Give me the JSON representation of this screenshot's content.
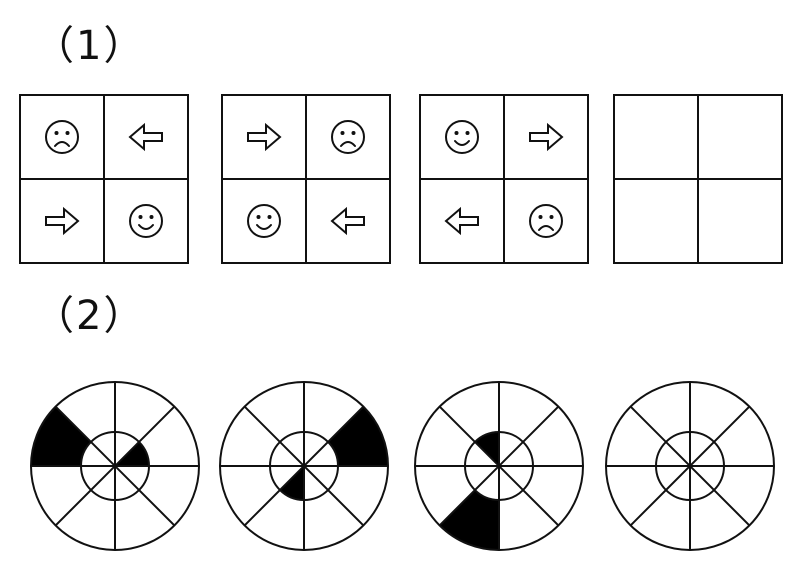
{
  "problems": [
    {
      "label": "（1）",
      "panels": [
        {
          "cells": [
            "sad-face",
            "left-arrow",
            "right-arrow",
            "happy-face"
          ]
        },
        {
          "cells": [
            "right-arrow",
            "sad-face",
            "happy-face",
            "left-arrow"
          ]
        },
        {
          "cells": [
            "happy-face",
            "right-arrow",
            "left-arrow",
            "sad-face"
          ]
        },
        {
          "cells": [
            "empty",
            "empty",
            "empty",
            "empty"
          ]
        }
      ]
    },
    {
      "label": "（2）",
      "panels": [
        {
          "shaded": [
            {
              "ring": "outer",
              "sector": 6
            },
            {
              "ring": "inner",
              "sector": 1
            }
          ]
        },
        {
          "shaded": [
            {
              "ring": "outer",
              "sector": 1
            },
            {
              "ring": "inner",
              "sector": 4
            }
          ]
        },
        {
          "shaded": [
            {
              "ring": "outer",
              "sector": 4
            },
            {
              "ring": "inner",
              "sector": 7
            }
          ]
        },
        {
          "shaded": []
        }
      ]
    }
  ],
  "colors": {
    "stroke": "#111111",
    "fill_dark": "#000000",
    "background": "#ffffff"
  }
}
